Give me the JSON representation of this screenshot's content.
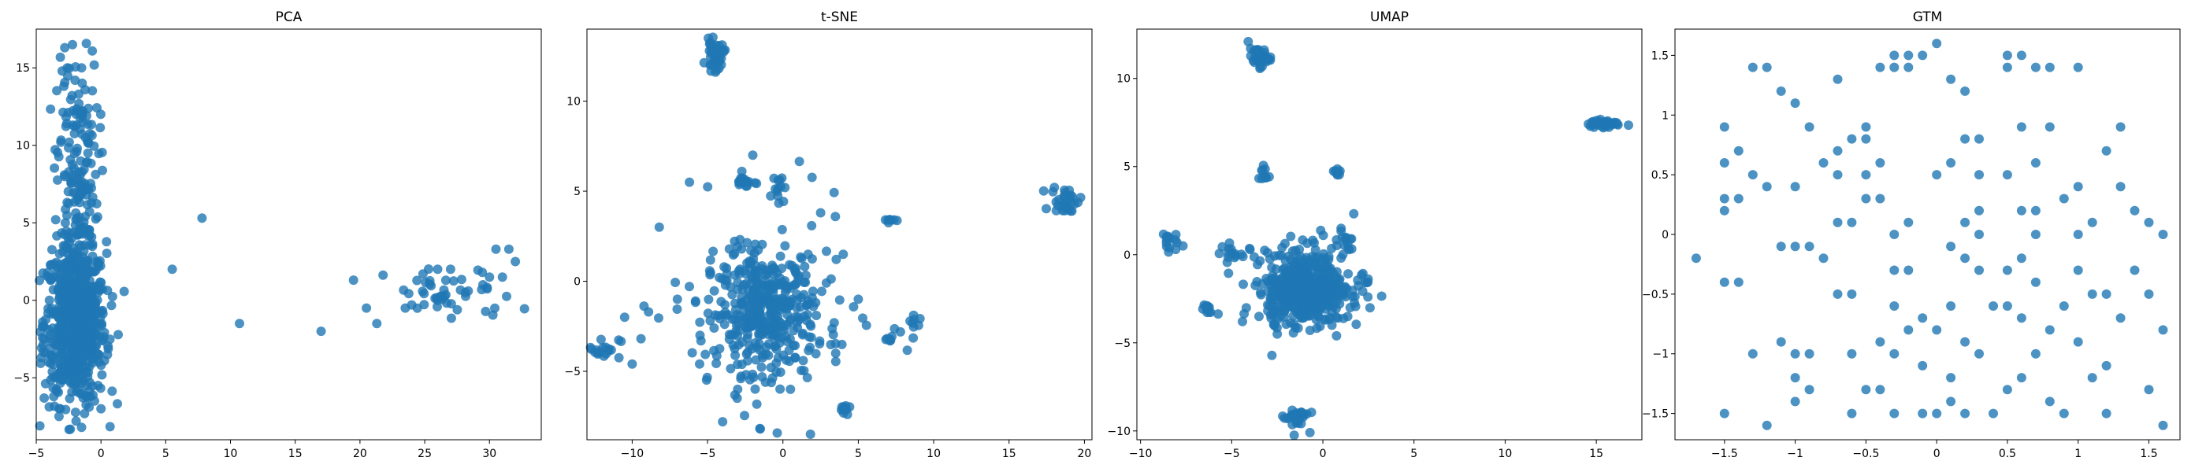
{
  "figure": {
    "point_color": "#1f77b4",
    "point_alpha": 0.8
  },
  "chart_data": [
    {
      "type": "scatter",
      "title": "PCA",
      "xlabel": "",
      "ylabel": "",
      "xlim": [
        -5,
        34
      ],
      "ylim": [
        -9,
        17.5
      ],
      "xticks": [
        -5,
        0,
        5,
        10,
        15,
        20,
        25,
        30
      ],
      "yticks": [
        -5,
        0,
        5,
        10,
        15
      ],
      "grid": false,
      "legend": "none",
      "clusters": [
        {
          "center": [
            -2.0,
            -1.5
          ],
          "spread": [
            1.2,
            2.6
          ],
          "count": 700
        },
        {
          "center": [
            -1.8,
            8.0
          ],
          "spread": [
            0.8,
            4.0
          ],
          "count": 170
        },
        {
          "center": [
            27.0,
            0.3
          ],
          "spread": [
            2.5,
            0.9
          ],
          "count": 45
        }
      ],
      "points": [
        [
          -2.8,
          16.3
        ],
        [
          -2.2,
          16.5
        ],
        [
          -2.6,
          15.0
        ],
        [
          -1.5,
          15.0
        ],
        [
          -3.0,
          14.8
        ],
        [
          -2.0,
          14.2
        ],
        [
          -1.4,
          11.5
        ],
        [
          -1.2,
          10.5
        ],
        [
          -1.0,
          9.5
        ],
        [
          -3.5,
          5.2
        ],
        [
          -3.2,
          3.0
        ],
        [
          -0.5,
          -6.5
        ],
        [
          0.0,
          -7.0
        ],
        [
          -1.5,
          -8.2
        ],
        [
          0.5,
          -3.5
        ],
        [
          7.8,
          5.3
        ],
        [
          5.5,
          2.0
        ],
        [
          10.7,
          -1.5
        ],
        [
          17.0,
          -2.0
        ],
        [
          19.5,
          1.3
        ],
        [
          20.5,
          -0.5
        ],
        [
          21.3,
          -1.5
        ],
        [
          23.5,
          -0.5
        ],
        [
          24.0,
          -0.3
        ],
        [
          26.0,
          2.0
        ],
        [
          27.0,
          2.0
        ],
        [
          30.5,
          3.3
        ],
        [
          31.5,
          3.3
        ],
        [
          32.0,
          2.5
        ],
        [
          30.0,
          1.5
        ],
        [
          31.0,
          1.5
        ],
        [
          29.5,
          1.0
        ]
      ]
    },
    {
      "type": "scatter",
      "title": "t-SNE",
      "xlabel": "",
      "ylabel": "",
      "xlim": [
        -13,
        20.5
      ],
      "ylim": [
        -8.8,
        14
      ],
      "xticks": [
        -10,
        -5,
        0,
        5,
        10,
        15,
        20
      ],
      "yticks": [
        -5,
        0,
        5,
        10
      ],
      "grid": false,
      "legend": "none",
      "clusters": [
        {
          "center": [
            -1.0,
            -1.8
          ],
          "spread": [
            1.6,
            1.6
          ],
          "count": 300
        },
        {
          "center": [
            -1.5,
            -1.5
          ],
          "spread": [
            3.0,
            2.8
          ],
          "count": 150
        },
        {
          "center": [
            -4.5,
            12.5
          ],
          "spread": [
            0.3,
            0.4
          ],
          "count": 40
        },
        {
          "center": [
            18.8,
            4.5
          ],
          "spread": [
            0.5,
            0.4
          ],
          "count": 30
        },
        {
          "center": [
            -12.0,
            -3.7
          ],
          "spread": [
            0.6,
            0.3
          ],
          "count": 20
        },
        {
          "center": [
            -2.5,
            5.5
          ],
          "spread": [
            0.5,
            0.15
          ],
          "count": 15
        },
        {
          "center": [
            -0.3,
            5.5
          ],
          "spread": [
            0.2,
            0.5
          ],
          "count": 12
        },
        {
          "center": [
            4.0,
            -7.3
          ],
          "spread": [
            0.2,
            0.3
          ],
          "count": 10
        },
        {
          "center": [
            8.5,
            -2.8
          ],
          "spread": [
            0.3,
            0.6
          ],
          "count": 10
        },
        {
          "center": [
            7.0,
            3.4
          ],
          "spread": [
            0.2,
            0.1
          ],
          "count": 8
        },
        {
          "center": [
            7.0,
            -3.2
          ],
          "spread": [
            0.2,
            0.1
          ],
          "count": 6
        }
      ],
      "points": [
        [
          -4.0,
          -7.8
        ],
        [
          -1.5,
          -8.2
        ],
        [
          -10.0,
          -4.6
        ],
        [
          -10.5,
          -2.0
        ],
        [
          -8.2,
          3.0
        ],
        [
          -6.2,
          5.5
        ],
        [
          -2.0,
          7.0
        ],
        [
          2.5,
          3.8
        ],
        [
          0.5,
          -6.0
        ],
        [
          -3.0,
          -6.0
        ],
        [
          4.0,
          1.5
        ],
        [
          3.5,
          -4.0
        ],
        [
          -7.0,
          -1.0
        ],
        [
          5.0,
          -1.0
        ],
        [
          -5.5,
          -3.0
        ]
      ]
    },
    {
      "type": "scatter",
      "title": "UMAP",
      "xlabel": "",
      "ylabel": "",
      "xlim": [
        -10.2,
        17.5
      ],
      "ylim": [
        -10.5,
        12.8
      ],
      "xticks": [
        -10,
        -5,
        0,
        5,
        10,
        15
      ],
      "yticks": [
        -10,
        -5,
        0,
        5,
        10
      ],
      "grid": false,
      "legend": "none",
      "clusters": [
        {
          "center": [
            -1.0,
            -2.0
          ],
          "spread": [
            1.0,
            0.9
          ],
          "count": 450
        },
        {
          "center": [
            -1.0,
            -1.5
          ],
          "spread": [
            1.7,
            1.4
          ],
          "count": 120
        },
        {
          "center": [
            -3.5,
            11.2
          ],
          "spread": [
            0.3,
            0.25
          ],
          "count": 40
        },
        {
          "center": [
            15.5,
            7.4
          ],
          "spread": [
            0.45,
            0.12
          ],
          "count": 35
        },
        {
          "center": [
            -1.5,
            -9.2
          ],
          "spread": [
            0.35,
            0.35
          ],
          "count": 30
        },
        {
          "center": [
            -8.5,
            0.8
          ],
          "spread": [
            0.25,
            0.3
          ],
          "count": 15
        },
        {
          "center": [
            -6.5,
            -3.1
          ],
          "spread": [
            0.25,
            0.2
          ],
          "count": 10
        },
        {
          "center": [
            -3.2,
            4.6
          ],
          "spread": [
            0.15,
            0.3
          ],
          "count": 10
        },
        {
          "center": [
            0.8,
            4.7
          ],
          "spread": [
            0.15,
            0.15
          ],
          "count": 8
        },
        {
          "center": [
            1.2,
            0.7
          ],
          "spread": [
            0.3,
            0.3
          ],
          "count": 15
        },
        {
          "center": [
            -5.0,
            0.1
          ],
          "spread": [
            0.3,
            0.25
          ],
          "count": 12
        },
        {
          "center": [
            2.4,
            -1.5
          ],
          "spread": [
            0.1,
            0.1
          ],
          "count": 4
        }
      ],
      "points": [
        [
          -2.5,
          -4.5
        ],
        [
          0.5,
          -4.0
        ],
        [
          1.5,
          -3.0
        ],
        [
          -3.5,
          -3.5
        ],
        [
          1.0,
          1.5
        ]
      ]
    },
    {
      "type": "scatter",
      "title": "GTM",
      "xlabel": "",
      "ylabel": "",
      "xlim": [
        -1.85,
        1.72
      ],
      "ylim": [
        -1.72,
        1.72
      ],
      "xticks": [
        -1.5,
        -1.0,
        -0.5,
        0.0,
        0.5,
        1.0,
        1.5
      ],
      "yticks": [
        -1.5,
        -1.0,
        -0.5,
        0.0,
        0.5,
        1.0,
        1.5
      ],
      "grid": false,
      "legend": "none",
      "grid_step": 0.1,
      "points": [
        [
          -1.7,
          -0.2
        ],
        [
          -1.55,
          0.9
        ],
        [
          -1.5,
          0.6
        ],
        [
          -1.45,
          0.7
        ],
        [
          -1.5,
          0.35
        ],
        [
          -1.45,
          0.3
        ],
        [
          -1.55,
          0.2
        ],
        [
          -1.5,
          -0.45
        ],
        [
          -1.45,
          -0.4
        ],
        [
          -1.5,
          -1.5
        ],
        [
          -1.35,
          1.45
        ],
        [
          -1.2,
          1.35
        ],
        [
          -1.1,
          1.2
        ],
        [
          -1.0,
          1.15
        ],
        [
          -1.3,
          0.5
        ],
        [
          -1.2,
          0.4
        ],
        [
          -1.0,
          0.4
        ],
        [
          -1.1,
          -0.1
        ],
        [
          -1.0,
          -0.1
        ],
        [
          -0.9,
          -0.1
        ],
        [
          -1.1,
          -0.95
        ],
        [
          -1.0,
          -1.0
        ],
        [
          -0.9,
          -1.05
        ],
        [
          -0.95,
          -1.3
        ],
        [
          -1.0,
          -1.4
        ],
        [
          -1.2,
          -1.6
        ],
        [
          -0.8,
          0.6
        ],
        [
          -0.7,
          0.65
        ],
        [
          -0.75,
          0.45
        ],
        [
          -0.6,
          0.75
        ],
        [
          -0.5,
          0.75
        ],
        [
          -0.5,
          0.45
        ],
        [
          -0.4,
          0.35
        ],
        [
          -0.6,
          0.05
        ],
        [
          -0.7,
          0.1
        ],
        [
          -0.3,
          1.5
        ],
        [
          -0.2,
          1.5
        ],
        [
          -0.1,
          1.5
        ],
        [
          -0.3,
          1.35
        ],
        [
          -0.4,
          1.45
        ],
        [
          -0.2,
          1.4
        ],
        [
          -0.3,
          0.0
        ],
        [
          -0.2,
          0.05
        ],
        [
          -0.35,
          -0.3
        ],
        [
          -0.3,
          -0.6
        ],
        [
          -0.2,
          -0.8
        ],
        [
          -0.1,
          -0.7
        ],
        [
          -0.3,
          -1.0
        ],
        [
          -0.4,
          -0.9
        ],
        [
          -0.6,
          -1.0
        ],
        [
          -0.5,
          -1.3
        ],
        [
          -0.4,
          -1.3
        ],
        [
          -0.6,
          -1.5
        ],
        [
          -0.3,
          -1.55
        ],
        [
          -0.1,
          -1.5
        ],
        [
          0.0,
          1.55
        ],
        [
          0.1,
          1.25
        ],
        [
          0.2,
          1.2
        ],
        [
          0.1,
          0.6
        ],
        [
          0.0,
          0.5
        ],
        [
          0.2,
          0.15
        ],
        [
          0.3,
          0.2
        ],
        [
          0.1,
          -0.1
        ],
        [
          0.2,
          -0.2
        ],
        [
          0.3,
          -0.3
        ],
        [
          0.1,
          -0.6
        ],
        [
          0.0,
          -0.8
        ],
        [
          0.2,
          -0.9
        ],
        [
          0.3,
          -1.0
        ],
        [
          0.1,
          -1.2
        ],
        [
          0.0,
          -1.55
        ],
        [
          0.2,
          -1.5
        ],
        [
          0.4,
          -1.5
        ],
        [
          0.5,
          1.5
        ],
        [
          0.6,
          1.5
        ],
        [
          0.7,
          1.45
        ],
        [
          0.5,
          1.4
        ],
        [
          0.8,
          1.45
        ],
        [
          0.6,
          0.9
        ],
        [
          0.8,
          0.9
        ],
        [
          0.7,
          0.6
        ],
        [
          0.5,
          0.5
        ],
        [
          0.6,
          0.2
        ],
        [
          0.7,
          0.2
        ],
        [
          0.5,
          -0.3
        ],
        [
          0.6,
          -0.2
        ],
        [
          0.7,
          -0.4
        ],
        [
          0.5,
          -0.6
        ],
        [
          0.6,
          -0.7
        ],
        [
          0.8,
          -0.8
        ],
        [
          0.7,
          -1.0
        ],
        [
          0.6,
          -1.2
        ],
        [
          0.5,
          -1.35
        ],
        [
          0.8,
          -1.4
        ],
        [
          0.9,
          -1.5
        ],
        [
          1.0,
          1.45
        ],
        [
          1.0,
          0.4
        ],
        [
          1.1,
          0.1
        ],
        [
          1.0,
          -0.3
        ],
        [
          1.1,
          -0.5
        ],
        [
          0.9,
          -0.6
        ],
        [
          1.0,
          -0.9
        ],
        [
          1.1,
          -1.2
        ],
        [
          1.2,
          -1.5
        ],
        [
          1.3,
          0.9
        ],
        [
          1.2,
          0.65
        ],
        [
          1.2,
          -0.5
        ],
        [
          1.3,
          -0.7
        ],
        [
          1.2,
          -1.1
        ],
        [
          1.4,
          0.2
        ],
        [
          1.5,
          0.15
        ],
        [
          1.4,
          -0.3
        ],
        [
          1.5,
          -0.5
        ],
        [
          1.6,
          0.0
        ],
        [
          1.55,
          -0.8
        ],
        [
          1.5,
          -1.3
        ],
        [
          1.6,
          -1.6
        ],
        [
          -0.9,
          0.95
        ],
        [
          -0.7,
          1.25
        ],
        [
          -0.8,
          -0.2
        ],
        [
          -0.7,
          -0.5
        ],
        [
          0.3,
          0.75
        ],
        [
          0.2,
          0.8
        ],
        [
          -0.5,
          0.9
        ],
        [
          -0.45,
          0.55
        ],
        [
          0.25,
          -0.05
        ],
        [
          0.4,
          -0.6
        ],
        [
          -1.3,
          -1.0
        ],
        [
          -1.0,
          -1.2
        ],
        [
          1.25,
          0.4
        ],
        [
          1.0,
          -0.05
        ],
        [
          0.7,
          0.0
        ],
        [
          -0.55,
          0.25
        ],
        [
          -0.25,
          -0.35
        ],
        [
          0.35,
          0.45
        ],
        [
          -0.15,
          -1.1
        ],
        [
          0.15,
          -1.4
        ],
        [
          0.9,
          0.3
        ],
        [
          -0.6,
          -0.5
        ]
      ]
    }
  ]
}
